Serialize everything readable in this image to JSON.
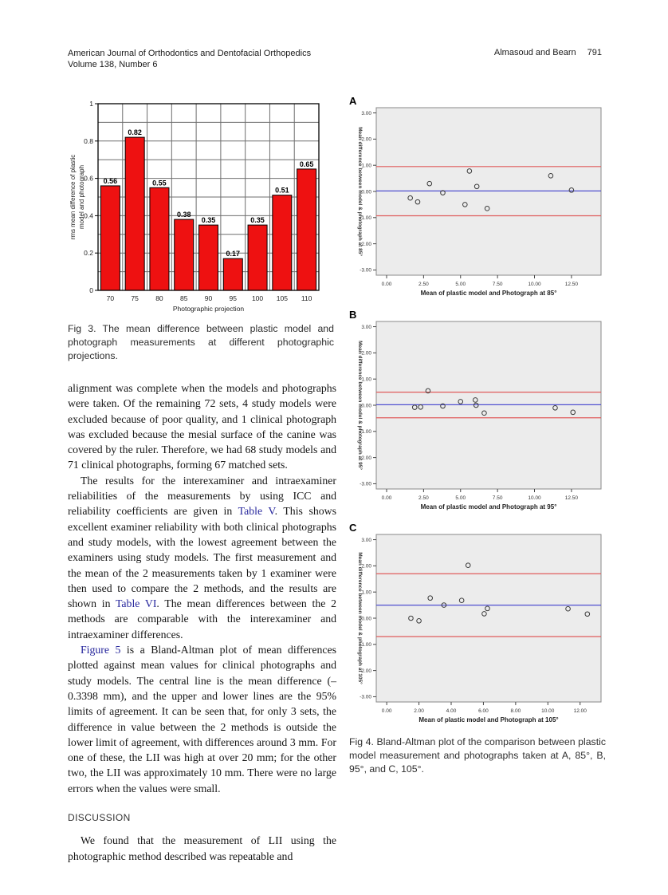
{
  "header": {
    "journal": "American Journal of Orthodontics and Dentofacial Orthopedics",
    "volume_issue": "Volume 138, Number 6",
    "running_authors": "Almasoud and Bearn",
    "page_number": "791"
  },
  "captions": {
    "fig3": "Fig 3. The mean difference between plastic model and photograph measurements at different photographic projections.",
    "fig4": "Fig 4. Bland-Altman plot of the comparison between plastic model measurement and photographs taken at A, 85°, B, 95°, and C, 105°."
  },
  "section_heading": "DISCUSSION",
  "article": {
    "paragraphs": [
      {
        "indent": false,
        "segments": [
          {
            "text": "alignment was complete when the models and photographs were taken. Of the remaining 72 sets, 4 study models were excluded because of poor quality, and 1 clinical photograph was excluded because the mesial surface of the canine was covered by the ruler. Therefore, we had 68 study models and 71 clinical photographs, forming 67 matched sets."
          }
        ]
      },
      {
        "indent": true,
        "segments": [
          {
            "text": "The results for the interexaminer and intraexaminer reliabilities of the measurements by using ICC and reliability coefficients are given in "
          },
          {
            "text": "Table V",
            "link": true
          },
          {
            "text": ". This shows excellent examiner reliability with both clinical photographs and study models, with the lowest agreement between the examiners using study models. The first measurement and the mean of the 2 measurements taken by 1 examiner were then used to compare the 2 methods, and the results are shown in "
          },
          {
            "text": "Table VI",
            "link": true
          },
          {
            "text": ". The mean differences between the 2 methods are comparable with the interexaminer and intraexaminer differences."
          }
        ]
      },
      {
        "indent": true,
        "segments": [
          {
            "text": "Figure 5",
            "link": true
          },
          {
            "text": " is a Bland-Altman plot of mean differences plotted against mean values for clinical photographs and study models. The central line is the mean difference (–0.3398 mm), and the upper and lower lines are the 95% limits of agreement. It can be seen that, for only 3 sets, the difference in value between the 2 methods is outside the lower limit of agreement, with differences around 3 mm. For one of these, the LII was high at over 20 mm; for the other two, the LII was approximately 10 mm. There were no large errors when the values were small."
          }
        ]
      }
    ],
    "discussion_paragraphs": [
      {
        "indent": true,
        "segments": [
          {
            "text": "We found that the measurement of LII using the photographic method described was repeatable and"
          }
        ]
      }
    ]
  },
  "colors": {
    "bar_fill": "#ee1111",
    "bar_border": "#000000",
    "grid": "#6e6e6e",
    "scatter_bg": "#ececec",
    "limit_line": "#e05c5c",
    "mean_line": "#5050d0",
    "point_stroke": "#3a3a3a",
    "link": "#26269c"
  },
  "chart_data": [
    {
      "type": "bar",
      "title": "",
      "categories": [
        "70",
        "75",
        "80",
        "85",
        "90",
        "95",
        "100",
        "105",
        "110"
      ],
      "values": [
        0.56,
        0.82,
        0.55,
        0.38,
        0.35,
        0.17,
        0.35,
        0.51,
        0.65
      ],
      "xlabel": "Photographic projection",
      "ylabel": "rms mean difference of plastic model and photograph",
      "ylabel_lines": [
        "rms mean difference of plastic",
        "model and photograph"
      ],
      "ylim": [
        0,
        1
      ],
      "yticks": [
        {
          "v": 1,
          "label": "1"
        },
        {
          "v": 0.8,
          "label": "0.8"
        },
        {
          "v": 0.6,
          "label": "0.6"
        },
        {
          "v": 0.4,
          "label": "0.4"
        },
        {
          "v": 0.2,
          "label": "0.2"
        },
        {
          "v": 0,
          "label": "0"
        }
      ],
      "grid_minor_step": 0.1,
      "grid": true
    },
    {
      "type": "scatter",
      "panel": "A",
      "xlabel": "Mean of plastic model and Photograph at 85°",
      "ylabel": "Mean difference between model & photograph at 85°",
      "xlim": [
        -0.7,
        14.5
      ],
      "ylim": [
        -3.2,
        3.2
      ],
      "xticks": [
        {
          "v": 0,
          "label": "0.00"
        },
        {
          "v": 2.5,
          "label": "2.50"
        },
        {
          "v": 5,
          "label": "5.00"
        },
        {
          "v": 7.5,
          "label": "7.50"
        },
        {
          "v": 10,
          "label": "10.00"
        },
        {
          "v": 12.5,
          "label": "12.50"
        }
      ],
      "yticks": [
        {
          "v": 3,
          "label": "3.00"
        },
        {
          "v": 2,
          "label": "2.00"
        },
        {
          "v": 1,
          "label": "1.00"
        },
        {
          "v": 0,
          "label": "0.00"
        },
        {
          "v": -1,
          "label": "-1.00"
        },
        {
          "v": -2,
          "label": "-2.00"
        },
        {
          "v": -3,
          "label": "-3.00"
        }
      ],
      "lines": {
        "mean": 0.02,
        "upper": 0.95,
        "lower": -0.93
      },
      "points": [
        [
          1.6,
          -0.25
        ],
        [
          2.1,
          -0.4
        ],
        [
          2.9,
          0.3
        ],
        [
          3.8,
          -0.05
        ],
        [
          5.3,
          -0.5
        ],
        [
          5.6,
          0.78
        ],
        [
          6.1,
          0.19
        ],
        [
          6.8,
          -0.65
        ],
        [
          11.1,
          0.6
        ],
        [
          12.5,
          0.05
        ]
      ]
    },
    {
      "type": "scatter",
      "panel": "B",
      "xlabel": "Mean of plastic model and Photograph at 95°",
      "ylabel": "Mean difference between model & photograph at 95°",
      "xlim": [
        -0.7,
        14.5
      ],
      "ylim": [
        -3.2,
        3.2
      ],
      "xticks": [
        {
          "v": 0,
          "label": "0.00"
        },
        {
          "v": 2.5,
          "label": "2.50"
        },
        {
          "v": 5,
          "label": "5.00"
        },
        {
          "v": 7.5,
          "label": "7.50"
        },
        {
          "v": 10,
          "label": "10.00"
        },
        {
          "v": 12.5,
          "label": "12.50"
        }
      ],
      "yticks": [
        {
          "v": 3,
          "label": "3.00"
        },
        {
          "v": 2,
          "label": "2.00"
        },
        {
          "v": 1,
          "label": "1.00"
        },
        {
          "v": 0,
          "label": "0.00"
        },
        {
          "v": -1,
          "label": "-1.00"
        },
        {
          "v": -2,
          "label": "-2.00"
        },
        {
          "v": -3,
          "label": "-3.00"
        }
      ],
      "lines": {
        "mean": 0.02,
        "upper": 0.5,
        "lower": -0.48
      },
      "points": [
        [
          1.9,
          -0.08
        ],
        [
          2.3,
          -0.07
        ],
        [
          2.8,
          0.55
        ],
        [
          3.8,
          -0.03
        ],
        [
          5.0,
          0.14
        ],
        [
          6.0,
          0.2
        ],
        [
          6.05,
          0.0
        ],
        [
          6.6,
          -0.3
        ],
        [
          11.4,
          -0.1
        ],
        [
          12.6,
          -0.27
        ]
      ]
    },
    {
      "type": "scatter",
      "panel": "C",
      "xlabel": "Mean of plastic model and Photograph at 105°",
      "ylabel": "Mean difference between model & photograph at 105°",
      "xlim": [
        -0.65,
        13.3
      ],
      "ylim": [
        -3.2,
        3.2
      ],
      "xticks": [
        {
          "v": 0,
          "label": "0.00"
        },
        {
          "v": 2,
          "label": "2.00"
        },
        {
          "v": 4,
          "label": "4.00"
        },
        {
          "v": 6,
          "label": "6.00"
        },
        {
          "v": 8,
          "label": "8.00"
        },
        {
          "v": 10,
          "label": "10.00"
        },
        {
          "v": 12,
          "label": "12.00"
        }
      ],
      "yticks": [
        {
          "v": 3,
          "label": "3.00"
        },
        {
          "v": 2,
          "label": "2.00"
        },
        {
          "v": 1,
          "label": "1.00"
        },
        {
          "v": 0,
          "label": "0.00"
        },
        {
          "v": -1,
          "label": "-1.00"
        },
        {
          "v": -2,
          "label": "-2.00"
        },
        {
          "v": -3,
          "label": "-3.00"
        }
      ],
      "lines": {
        "mean": 0.5,
        "upper": 1.7,
        "lower": -0.7
      },
      "points": [
        [
          1.5,
          0.0
        ],
        [
          2.0,
          -0.1
        ],
        [
          2.7,
          0.77
        ],
        [
          3.55,
          0.5
        ],
        [
          4.65,
          0.68
        ],
        [
          5.05,
          2.02
        ],
        [
          6.05,
          0.17
        ],
        [
          6.25,
          0.37
        ],
        [
          11.25,
          0.36
        ],
        [
          12.45,
          0.16
        ]
      ]
    }
  ]
}
